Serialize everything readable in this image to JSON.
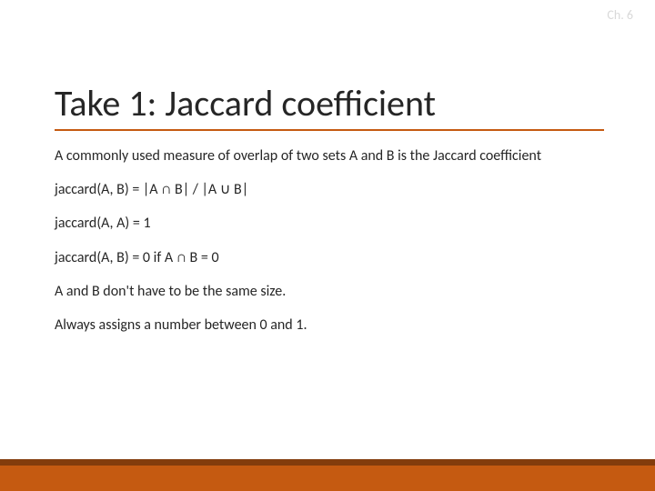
{
  "header": {
    "chapter_label": "Ch. 6"
  },
  "title": "Take 1: Jaccard coefficient",
  "paragraphs": {
    "p0": "A commonly used measure of overlap of two sets A and B is the Jaccard coefficient",
    "p1": "jaccard(A, B) = |A ∩ B| / |A ∪ B|",
    "p2": "jaccard(A, A) = 1",
    "p3": "jaccard(A, B) = 0 if A ∩ B = 0",
    "p4": "A and B don't have to be the same size.",
    "p5": "Always assigns a number between 0 and 1."
  },
  "colors": {
    "accent": "#c55a11",
    "accent_dark": "#833c0c",
    "text": "#262626",
    "muted": "#d9d9d9",
    "background": "#ffffff"
  },
  "typography": {
    "title_fontsize": 40,
    "body_fontsize": 16,
    "chapter_fontsize": 14
  }
}
